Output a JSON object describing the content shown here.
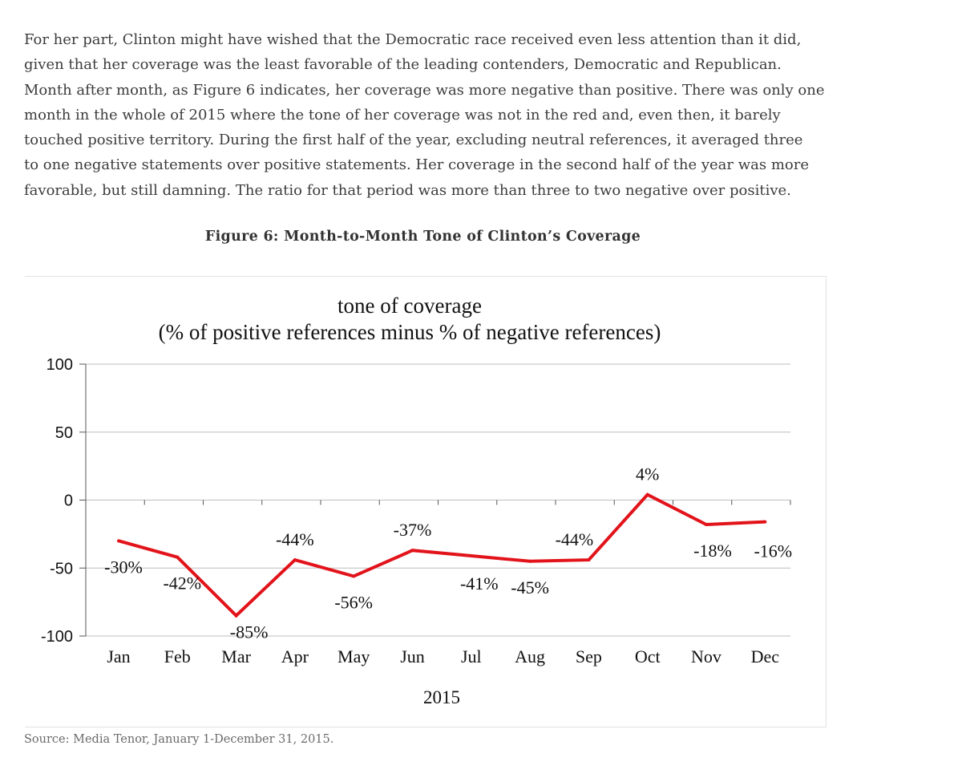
{
  "article": {
    "lines": [
      "For her part, Clinton might have wished that the Democratic race received even less attention than it did,",
      "given that her coverage was the least favorable of the leading contenders, Democratic and Republican.",
      "Month after month, as Figure 6 indicates, her coverage was more negative than positive. There was only one",
      "month in the whole of 2015 where the tone of her coverage was not in the red and, even then, it barely",
      "touched positive territory. During the first half of the year, excluding neutral references, it averaged three",
      "to one negative statements over positive statements. Her coverage in the second half of the year was more",
      "favorable, but still damning. The ratio for that period was more than three to two negative over positive."
    ]
  },
  "figure": {
    "caption": "Figure 6: Month-to-Month Tone of Clinton’s Coverage",
    "source": "Source: Media Tenor, January 1-December 31, 2015."
  },
  "chart_data": {
    "type": "line",
    "title": "tone of coverage",
    "subtitle": "(% of positive references minus % of negative references)",
    "xlabel": "2015",
    "ylabel": "",
    "categories": [
      "Jan",
      "Feb",
      "Mar",
      "Apr",
      "May",
      "Jun",
      "Jul",
      "Aug",
      "Sep",
      "Oct",
      "Nov",
      "Dec"
    ],
    "values": [
      -30,
      -42,
      -85,
      -44,
      -56,
      -37,
      -41,
      -45,
      -44,
      4,
      -18,
      -16
    ],
    "data_labels": [
      "-30%",
      "-42%",
      "-85%",
      "-44%",
      "-56%",
      "-37%",
      "-41%",
      "-45%",
      "-44%",
      "4%",
      "-18%",
      "-16%"
    ],
    "yticks": [
      100,
      50,
      0,
      -50,
      -100
    ],
    "ytick_labels": [
      "100",
      "50",
      "0",
      "-50",
      "-100"
    ],
    "ylim": [
      -100,
      100
    ],
    "grid": true,
    "line_color": "#e2131a",
    "grid_color": "#bdbdbd"
  }
}
